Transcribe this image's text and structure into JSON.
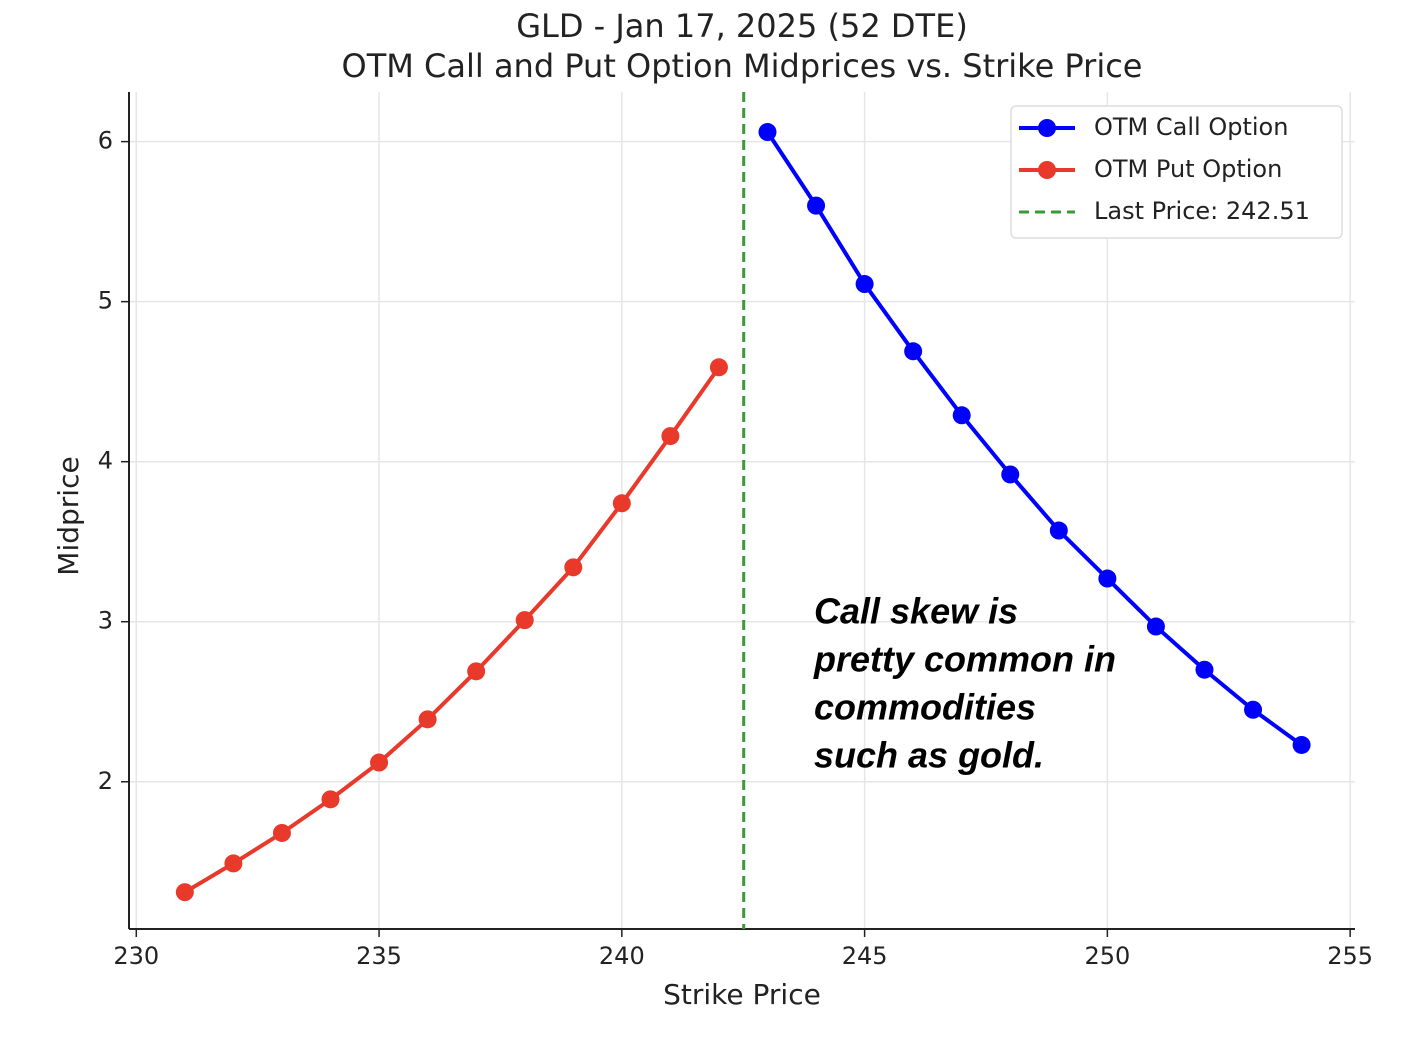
{
  "chart_data": {
    "type": "line",
    "title": [
      "GLD - Jan 17, 2025 (52 DTE)",
      "OTM Call and Put Option Midprices vs. Strike Price"
    ],
    "x_label": "Strike Price",
    "y_label": "Midprice",
    "xlim": [
      229.85,
      255.1
    ],
    "xticks": [
      230,
      235,
      240,
      245,
      250,
      255
    ],
    "ylim": [
      1.08,
      6.31
    ],
    "yticks": [
      2,
      3,
      4,
      5,
      6
    ],
    "grid": true,
    "legend": "upper right",
    "series": [
      {
        "name": "OTM Call Option",
        "color": "#0000ff",
        "x": [
          243,
          244,
          245,
          246,
          247,
          248,
          249,
          250,
          251,
          252,
          253,
          254
        ],
        "values": [
          6.06,
          5.6,
          5.11,
          4.69,
          4.29,
          3.92,
          3.57,
          3.27,
          2.97,
          2.7,
          2.45,
          2.23
        ]
      },
      {
        "name": "OTM Put Option",
        "color": "#e8392b",
        "x": [
          231,
          232,
          233,
          234,
          235,
          236,
          237,
          238,
          239,
          240,
          241,
          242
        ],
        "values": [
          1.31,
          1.49,
          1.68,
          1.89,
          2.12,
          2.39,
          2.69,
          3.01,
          3.34,
          3.74,
          4.16,
          4.59
        ]
      }
    ],
    "vline": {
      "value": 242.51,
      "label": "Last Price: 242.51",
      "color": "#3a9a3a"
    },
    "annotation": [
      "Call skew is",
      "pretty common in",
      "commodities",
      "such as gold."
    ]
  }
}
